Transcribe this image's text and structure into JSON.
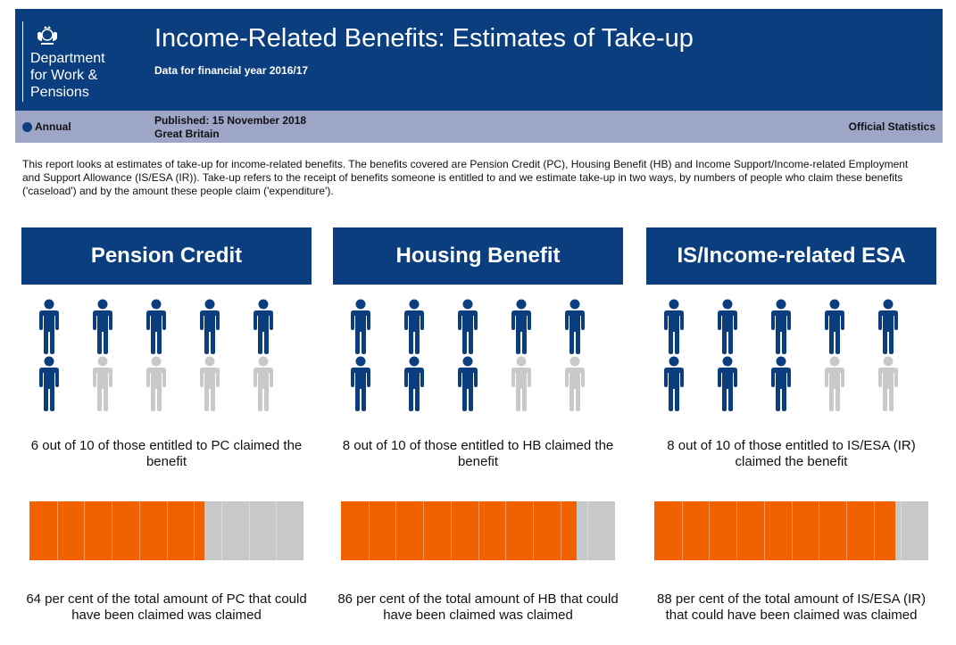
{
  "header": {
    "logo_lines": [
      "Department",
      "for Work &",
      "Pensions"
    ],
    "title": "Income-Related Benefits: Estimates of Take-up",
    "subtitle": "Data for financial year 2016/17",
    "frequency": "Annual",
    "published": "Published: 15 November 2018",
    "region": "Great Britain",
    "status": "Official Statistics"
  },
  "intro": "This report looks at estimates of take-up for income-related benefits. The benefits covered are Pension Credit (PC), Housing Benefit (HB) and Income Support/Income-related Employment and Support Allowance (IS/ESA (IR)). Take-up refers to the receipt of benefits someone is entitled to and we estimate take-up in two ways, by numbers of people who claim these benefits ('caseload') and by the amount these people claim ('expenditure').",
  "colors": {
    "navy": "#0b3e7f",
    "orange": "#f26100",
    "grey": "#c7c8ca",
    "person_grey": "#c9c9c9"
  },
  "benefits": [
    {
      "title": "Pension Credit",
      "claimed_out_of_10": 6,
      "caseload_text": "6 out of 10 of those entitled to PC claimed the benefit",
      "expenditure_percent": 64,
      "expenditure_text": "64 per cent of the total amount of PC that could have been claimed was claimed"
    },
    {
      "title": "Housing Benefit",
      "claimed_out_of_10": 8,
      "caseload_text": "8 out of 10 of those entitled to HB claimed the benefit",
      "expenditure_percent": 86,
      "expenditure_text": "86 per cent of the total amount of HB that could have been claimed was claimed"
    },
    {
      "title": "IS/Income-related ESA",
      "claimed_out_of_10": 8,
      "caseload_text": "8 out of 10 of those entitled to IS/ESA (IR) claimed the benefit",
      "expenditure_percent": 88,
      "expenditure_text": "88 per cent of the total amount of IS/ESA (IR) that could have been claimed was claimed"
    }
  ]
}
